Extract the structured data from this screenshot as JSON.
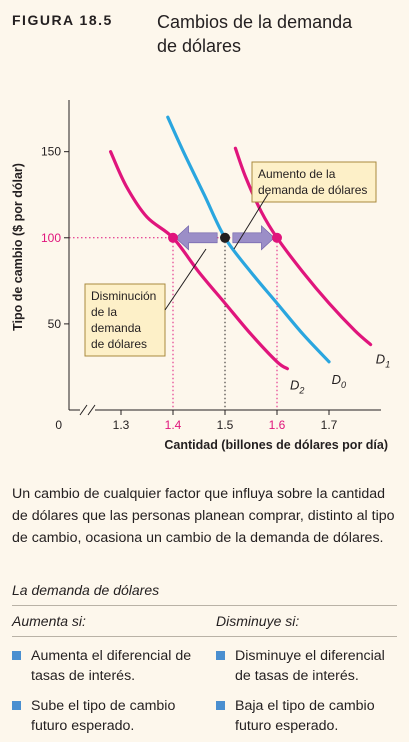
{
  "figure": {
    "label": "FIGURA 18.5",
    "title_line1": "Cambios de la demanda",
    "title_line2": "de dólares"
  },
  "chart_data": {
    "type": "line",
    "title": "",
    "xlabel": "Cantidad (billones de dólares por día)",
    "ylabel": "Tipo de cambio ($ por dólar)",
    "origin_label": "0",
    "xlim": [
      1.2,
      1.8
    ],
    "ylim": [
      0,
      180
    ],
    "x_ticks": [
      {
        "value": 1.3,
        "label": "1.3",
        "highlight": false
      },
      {
        "value": 1.4,
        "label": "1.4",
        "highlight": true
      },
      {
        "value": 1.5,
        "label": "1.5",
        "highlight": false
      },
      {
        "value": 1.6,
        "label": "1.6",
        "highlight": true
      },
      {
        "value": 1.7,
        "label": "1.7",
        "highlight": false
      }
    ],
    "y_ticks": [
      {
        "value": 50,
        "label": "50",
        "highlight": false
      },
      {
        "value": 100,
        "label": "100",
        "highlight": true
      },
      {
        "value": 150,
        "label": "150",
        "highlight": false
      }
    ],
    "axis_break": true,
    "series": [
      {
        "id": "d0",
        "name": "D",
        "subscript": "0",
        "color": "#2aa6df",
        "points": [
          [
            1.39,
            170
          ],
          [
            1.42,
            150
          ],
          [
            1.46,
            125
          ],
          [
            1.5,
            100
          ],
          [
            1.55,
            80
          ],
          [
            1.6,
            62
          ],
          [
            1.65,
            44
          ],
          [
            1.7,
            28
          ]
        ],
        "label_at": [
          1.705,
          15
        ]
      },
      {
        "id": "d1",
        "name": "D",
        "subscript": "1",
        "color": "#e0157c",
        "points": [
          [
            1.52,
            152
          ],
          [
            1.54,
            135
          ],
          [
            1.57,
            115
          ],
          [
            1.6,
            100
          ],
          [
            1.65,
            80
          ],
          [
            1.7,
            62
          ],
          [
            1.75,
            46
          ],
          [
            1.78,
            38
          ]
        ],
        "label_at": [
          1.79,
          27
        ]
      },
      {
        "id": "d2",
        "name": "D",
        "subscript": "2",
        "color": "#e0157c",
        "points": [
          [
            1.28,
            150
          ],
          [
            1.31,
            130
          ],
          [
            1.35,
            112
          ],
          [
            1.4,
            100
          ],
          [
            1.45,
            80
          ],
          [
            1.5,
            62
          ],
          [
            1.55,
            44
          ],
          [
            1.6,
            28
          ],
          [
            1.62,
            24
          ]
        ],
        "label_at": [
          1.625,
          12
        ]
      }
    ],
    "points": [
      {
        "x": 1.5,
        "y": 100,
        "color": "#231f20"
      },
      {
        "x": 1.4,
        "y": 100,
        "color": "#e0157c"
      },
      {
        "x": 1.6,
        "y": 100,
        "color": "#e0157c"
      }
    ],
    "reference_lines": [
      {
        "x": 1.4,
        "y": 100,
        "color": "#e0157c"
      },
      {
        "x": 1.5,
        "y": 100,
        "color": "#231f20"
      },
      {
        "x": 1.6,
        "y": 100,
        "color": "#e0157c"
      }
    ],
    "arrows": [
      {
        "from": 1.485,
        "to": 1.405,
        "y": 100,
        "meaning": "decrease"
      },
      {
        "from": 1.515,
        "to": 1.595,
        "y": 100,
        "meaning": "increase"
      }
    ],
    "annotations": [
      {
        "id": "increase",
        "lines": [
          "Aumento de la",
          "demanda de dólares"
        ]
      },
      {
        "id": "decrease",
        "lines": [
          "Disminución",
          "de la",
          "demanda",
          "de dólares"
        ]
      }
    ],
    "colors": {
      "arrow": "#9b8ec7",
      "box_fill": "#fdf0c8",
      "box_border": "#a98a3e"
    }
  },
  "description": "Un cambio de cualquier factor que influya sobre la cantidad de dólares que las personas planean comprar, distinto al tipo de cambio, ocasiona un cambio de la demanda de dólares.",
  "table": {
    "title": "La demanda de dólares",
    "increase_header": "Aumenta si:",
    "decrease_header": "Disminuye si:",
    "increase_items": [
      "Aumenta el diferencial de tasas de interés.",
      "Sube el tipo de cambio futuro esperado."
    ],
    "decrease_items": [
      "Disminuye el diferencial de tasas de interés.",
      "Baja el tipo de cambio futuro esperado."
    ],
    "bullet_color": "#4a8fd0"
  }
}
